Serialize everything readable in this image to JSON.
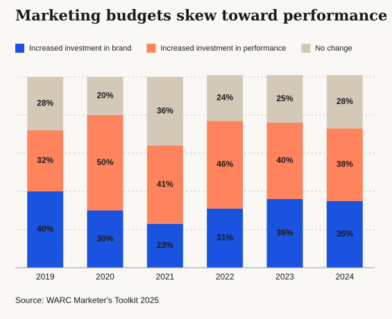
{
  "chart_data": {
    "type": "stacked-bar",
    "title": "Marketing budgets skew toward performance",
    "source": "Source: WARC Marketer's Toolkit 2025",
    "categories": [
      "2019",
      "2020",
      "2021",
      "2022",
      "2023",
      "2024"
    ],
    "series": [
      {
        "name": "Increased investment in brand",
        "color": "#1a53e0",
        "label_color": "#ffffff",
        "values": [
          40,
          30,
          23,
          31,
          36,
          35
        ],
        "value_labels": [
          "40%",
          "30%",
          "23%",
          "31%",
          "36%",
          "35%"
        ]
      },
      {
        "name": "Increased investment in performance",
        "color": "#ff845d",
        "label_color": "#1a1a1a",
        "values": [
          32,
          50,
          41,
          46,
          40,
          38
        ],
        "value_labels": [
          "32%",
          "50%",
          "41%",
          "46%",
          "40%",
          "38%"
        ]
      },
      {
        "name": "No change",
        "color": "#d4c8b7",
        "label_color": "#1a1a1a",
        "values": [
          28,
          20,
          36,
          24,
          25,
          28
        ],
        "value_labels": [
          "28%",
          "20%",
          "36%",
          "24%",
          "25%",
          "28%"
        ]
      }
    ],
    "ylim": [
      0,
      100
    ],
    "yticks": [
      20,
      40,
      60,
      80,
      100
    ],
    "grid": true
  }
}
